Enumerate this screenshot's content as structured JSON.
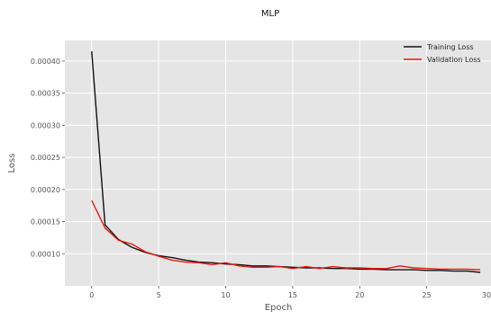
{
  "chart_data": {
    "type": "line",
    "title": "MLP",
    "xlabel": "Epoch",
    "ylabel": "Loss",
    "xlim": [
      -2,
      30
    ],
    "ylim": [
      5e-05,
      0.000432
    ],
    "xticks": [
      0,
      5,
      10,
      15,
      20,
      25,
      30
    ],
    "yticks": [
      0.0001,
      0.00015,
      0.0002,
      0.00025,
      0.0003,
      0.00035,
      0.0004
    ],
    "ytick_labels": [
      "0.00010",
      "0.00015",
      "0.00020",
      "0.00025",
      "0.00030",
      "0.00035",
      "0.00040"
    ],
    "grid": true,
    "legend_position": "top-right",
    "x": [
      0,
      1,
      2,
      3,
      4,
      5,
      6,
      7,
      8,
      9,
      10,
      11,
      12,
      13,
      14,
      15,
      16,
      17,
      18,
      19,
      20,
      21,
      22,
      23,
      24,
      25,
      26,
      27,
      28,
      29
    ],
    "series": [
      {
        "name": "Training Loss",
        "color": "#111111",
        "values": [
          0.000415,
          0.000145,
          0.000122,
          0.00011,
          0.000102,
          9.7e-05,
          9.4e-05,
          9e-05,
          8.7e-05,
          8.6e-05,
          8.4e-05,
          8.3e-05,
          8.1e-05,
          8.1e-05,
          8e-05,
          7.9e-05,
          7.8e-05,
          7.8e-05,
          7.7e-05,
          7.7e-05,
          7.6e-05,
          7.6e-05,
          7.5e-05,
          7.5e-05,
          7.5e-05,
          7.4e-05,
          7.4e-05,
          7.3e-05,
          7.3e-05,
          7.1e-05
        ]
      },
      {
        "name": "Validation Loss",
        "color": "#e8190f",
        "values": [
          0.000183,
          0.00014,
          0.000121,
          0.000115,
          0.000103,
          9.6e-05,
          9e-05,
          8.7e-05,
          8.6e-05,
          8.3e-05,
          8.6e-05,
          8.1e-05,
          7.9e-05,
          7.9e-05,
          8e-05,
          7.7e-05,
          8e-05,
          7.7e-05,
          8e-05,
          7.8e-05,
          7.8e-05,
          7.7e-05,
          7.7e-05,
          8.1e-05,
          7.8e-05,
          7.7e-05,
          7.6e-05,
          7.6e-05,
          7.6e-05,
          7.5e-05
        ]
      }
    ],
    "colors": {
      "panel_bg": "#e5e5e5",
      "grid": "#ffffff",
      "text": "#555555"
    }
  }
}
